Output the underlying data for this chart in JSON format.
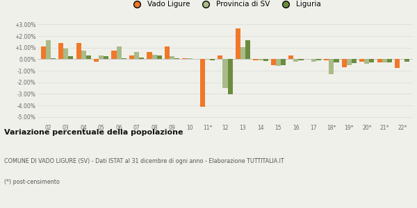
{
  "categories": [
    "02",
    "03",
    "04",
    "05",
    "06",
    "07",
    "08",
    "09",
    "10",
    "11*",
    "12",
    "13",
    "14",
    "15",
    "16",
    "17",
    "18*",
    "19*",
    "20*",
    "21*",
    "22*"
  ],
  "vado_ligure": [
    1.1,
    1.4,
    1.4,
    -0.2,
    0.75,
    0.3,
    0.6,
    1.1,
    0.1,
    -4.1,
    0.3,
    2.65,
    -0.1,
    -0.5,
    0.3,
    0.05,
    -0.1,
    -0.7,
    -0.2,
    -0.3,
    -0.75
  ],
  "provincia_sv": [
    1.65,
    0.95,
    0.75,
    0.3,
    1.1,
    0.6,
    0.4,
    0.25,
    0.1,
    -0.05,
    -2.5,
    1.05,
    -0.1,
    -0.55,
    -0.2,
    -0.2,
    -1.3,
    -0.5,
    -0.4,
    -0.25,
    0.05
  ],
  "liguria": [
    0.1,
    0.25,
    0.35,
    0.25,
    0.1,
    0.15,
    0.3,
    0.1,
    0.05,
    -0.1,
    -3.05,
    1.65,
    -0.15,
    -0.5,
    -0.1,
    -0.1,
    -0.25,
    -0.35,
    -0.25,
    -0.3,
    -0.2
  ],
  "color_vado": "#f07828",
  "color_provincia": "#a8bb88",
  "color_liguria": "#6b8c3e",
  "title_bold": "Variazione percentuale della popolazione",
  "subtitle1": "COMUNE DI VADO LIGURE (SV) - Dati ISTAT al 31 dicembre di ogni anno - Elaborazione TUTTITALIA.IT",
  "subtitle2": "(*) post-censimento",
  "ylim": [
    -5.5,
    3.5
  ],
  "yticks": [
    -5.0,
    -4.0,
    -3.0,
    -2.0,
    -1.0,
    0.0,
    1.0,
    2.0,
    3.0
  ],
  "background_color": "#f0f0eb"
}
